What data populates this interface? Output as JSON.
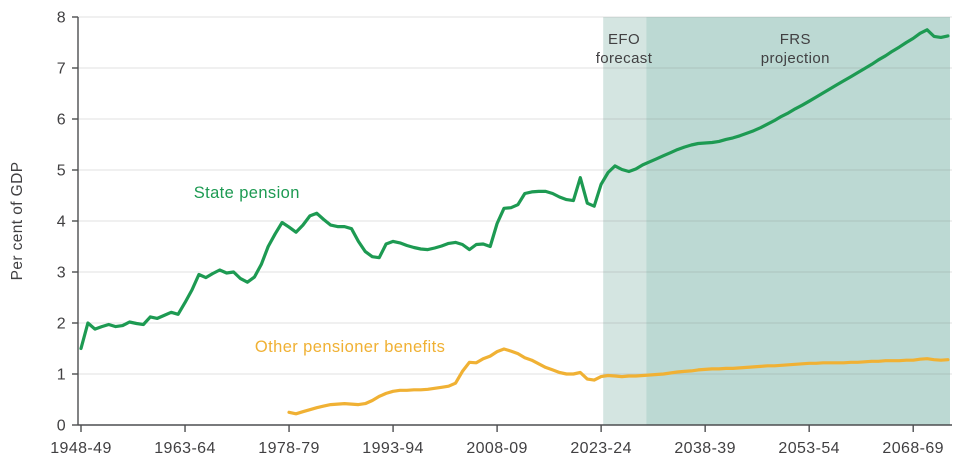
{
  "page": {
    "background": "#ffffff"
  },
  "chart_data": {
    "type": "line",
    "title": "",
    "xlabel": "",
    "ylabel": "Per cent of GDP",
    "ylim": [
      0,
      8
    ],
    "yticks": [
      0,
      1,
      2,
      3,
      4,
      5,
      6,
      7,
      8
    ],
    "grid": true,
    "x_start_year": 1948,
    "x_end_year": 2073,
    "x_ticks": [
      {
        "year": 1948,
        "label": "1948-49"
      },
      {
        "year": 1963,
        "label": "1963-64"
      },
      {
        "year": 1978,
        "label": "1978-79"
      },
      {
        "year": 1993,
        "label": "1993-94"
      },
      {
        "year": 2008,
        "label": "2008-09"
      },
      {
        "year": 2023,
        "label": "2023-24"
      },
      {
        "year": 2038,
        "label": "2038-39"
      },
      {
        "year": 2053,
        "label": "2053-54"
      },
      {
        "year": 2068,
        "label": "2068-69"
      }
    ],
    "regions": [
      {
        "id": "efo-forecast",
        "label": "EFO forecast",
        "start_year": 2023.3,
        "end_year": 2029.5,
        "color": "#d4e5e1"
      },
      {
        "id": "frs-projection",
        "label": "FRS projection",
        "start_year": 2029.5,
        "end_year": 2073.3,
        "color": "#bcd9d3"
      }
    ],
    "annotations": [
      {
        "id": "efo-forecast-label",
        "lines": [
          "EFO",
          "forecast"
        ],
        "anchor_year": 2026.3,
        "color": "#414042"
      },
      {
        "id": "frs-projection-label",
        "lines": [
          "FRS",
          "projection"
        ],
        "anchor_year": 2051,
        "color": "#414042"
      }
    ],
    "axis": {
      "line_color": "#4d4e50",
      "text_color": "#414042",
      "grid_color": "rgba(120,120,120,0.22)"
    },
    "series": [
      {
        "id": "state-pension",
        "name": "State pension",
        "color": "#1d9a52",
        "start_year": 1948,
        "label_anchor": {
          "year": 1971.9,
          "value": 4.45
        },
        "values": [
          1.5,
          2.0,
          1.88,
          1.93,
          1.97,
          1.93,
          1.95,
          2.02,
          1.99,
          1.97,
          2.12,
          2.09,
          2.15,
          2.21,
          2.17,
          2.4,
          2.65,
          2.95,
          2.89,
          2.97,
          3.04,
          2.98,
          3.0,
          2.87,
          2.8,
          2.9,
          3.15,
          3.5,
          3.75,
          3.97,
          3.88,
          3.78,
          3.92,
          4.1,
          4.15,
          4.03,
          3.92,
          3.89,
          3.89,
          3.85,
          3.6,
          3.4,
          3.3,
          3.28,
          3.55,
          3.6,
          3.57,
          3.52,
          3.48,
          3.45,
          3.44,
          3.47,
          3.51,
          3.56,
          3.58,
          3.54,
          3.44,
          3.54,
          3.55,
          3.5,
          3.95,
          4.25,
          4.26,
          4.32,
          4.54,
          4.57,
          4.58,
          4.58,
          4.54,
          4.47,
          4.42,
          4.4,
          4.85,
          4.35,
          4.29,
          4.72,
          4.95,
          5.08,
          5.01,
          4.97,
          5.02,
          5.1,
          5.16,
          5.22,
          5.28,
          5.34,
          5.4,
          5.45,
          5.49,
          5.52,
          5.53,
          5.54,
          5.56,
          5.6,
          5.63,
          5.67,
          5.72,
          5.77,
          5.83,
          5.9,
          5.97,
          6.05,
          6.12,
          6.2,
          6.27,
          6.35,
          6.43,
          6.51,
          6.59,
          6.67,
          6.75,
          6.83,
          6.91,
          6.99,
          7.07,
          7.16,
          7.24,
          7.33,
          7.41,
          7.5,
          7.58,
          7.68,
          7.75,
          7.62,
          7.6,
          7.63
        ]
      },
      {
        "id": "other-pensioner-benefits",
        "name": "Other pensioner benefits",
        "color": "#f0b134",
        "start_year": 1978,
        "label_anchor": {
          "year": 1986.8,
          "value": 1.43
        },
        "values": [
          0.25,
          0.22,
          0.26,
          0.3,
          0.34,
          0.37,
          0.4,
          0.41,
          0.42,
          0.41,
          0.4,
          0.42,
          0.48,
          0.56,
          0.62,
          0.66,
          0.68,
          0.68,
          0.69,
          0.69,
          0.7,
          0.72,
          0.74,
          0.76,
          0.82,
          1.05,
          1.23,
          1.22,
          1.3,
          1.35,
          1.44,
          1.49,
          1.45,
          1.4,
          1.32,
          1.27,
          1.2,
          1.13,
          1.08,
          1.03,
          1.0,
          1.0,
          1.03,
          0.9,
          0.88,
          0.95,
          0.97,
          0.96,
          0.95,
          0.96,
          0.96,
          0.97,
          0.98,
          0.99,
          1.0,
          1.02,
          1.04,
          1.05,
          1.06,
          1.08,
          1.09,
          1.1,
          1.1,
          1.11,
          1.11,
          1.12,
          1.13,
          1.14,
          1.15,
          1.16,
          1.16,
          1.17,
          1.18,
          1.19,
          1.2,
          1.21,
          1.21,
          1.22,
          1.22,
          1.22,
          1.22,
          1.23,
          1.23,
          1.24,
          1.25,
          1.25,
          1.26,
          1.26,
          1.26,
          1.27,
          1.27,
          1.29,
          1.3,
          1.28,
          1.27,
          1.28
        ]
      }
    ]
  }
}
